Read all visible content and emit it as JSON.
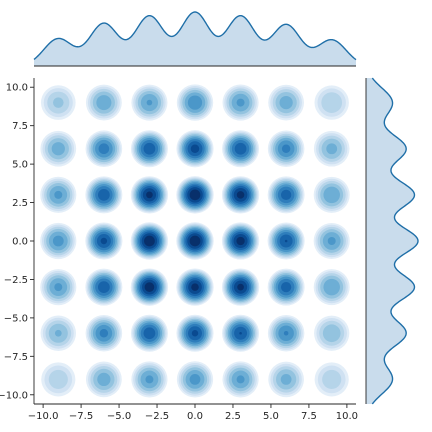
{
  "chart_data": {
    "type": "heatmap",
    "subtype": "joint-kde",
    "title": "",
    "xlabel": "",
    "ylabel": "",
    "xlim": [
      -10.6,
      10.6
    ],
    "ylim": [
      -10.6,
      10.6
    ],
    "xticks": [
      -10.0,
      -7.5,
      -5.0,
      -2.5,
      0.0,
      2.5,
      5.0,
      7.5,
      10.0
    ],
    "yticks": [
      -10.0,
      -7.5,
      -5.0,
      -2.5,
      0.0,
      2.5,
      5.0,
      7.5,
      10.0
    ],
    "xtick_labels": [
      "−10.0",
      "−7.5",
      "−5.0",
      "−2.5",
      "0.0",
      "2.5",
      "5.0",
      "7.5",
      "10.0"
    ],
    "ytick_labels": [
      "−10.0",
      "−7.5",
      "−5.0",
      "−2.5",
      "0.0",
      "2.5",
      "5.0",
      "7.5",
      "10.0"
    ],
    "grid": false,
    "colormap": "Blues",
    "fill_color": "#c9dcec",
    "line_color": "#1f6fa8",
    "x_centers": [
      -9,
      -6,
      -3,
      0,
      3,
      6,
      9
    ],
    "y_centers": [
      9,
      6,
      3,
      0,
      -3,
      -6,
      -9
    ],
    "density": [
      [
        0.38,
        0.52,
        0.55,
        0.62,
        0.56,
        0.5,
        0.36
      ],
      [
        0.5,
        0.68,
        0.8,
        0.86,
        0.8,
        0.66,
        0.48
      ],
      [
        0.56,
        0.8,
        0.94,
        1.0,
        0.95,
        0.78,
        0.54
      ],
      [
        0.58,
        0.84,
        1.0,
        1.0,
        0.96,
        0.82,
        0.56
      ],
      [
        0.56,
        0.8,
        0.98,
        0.95,
        0.94,
        0.78,
        0.54
      ],
      [
        0.46,
        0.66,
        0.8,
        0.84,
        0.82,
        0.64,
        0.44
      ],
      [
        0.34,
        0.5,
        0.56,
        0.58,
        0.56,
        0.48,
        0.34
      ]
    ],
    "marginal_x": {
      "x": [
        -9,
        -6,
        -3,
        0,
        3,
        6,
        9
      ],
      "density": [
        0.45,
        0.7,
        0.82,
        0.88,
        0.82,
        0.68,
        0.43
      ]
    },
    "marginal_y": {
      "y": [
        9,
        6,
        3,
        0,
        -3,
        -6,
        -9
      ],
      "density": [
        0.45,
        0.68,
        0.82,
        0.88,
        0.82,
        0.68,
        0.45
      ]
    }
  }
}
